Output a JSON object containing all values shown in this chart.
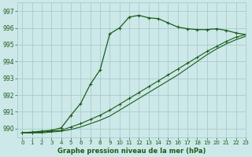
{
  "title": "Graphe pression niveau de la mer (hPa)",
  "bg_color": "#cce8e8",
  "grid_color": "#aacccc",
  "line_color": "#1a5c1a",
  "xlim": [
    -0.5,
    23
  ],
  "ylim": [
    989.5,
    997.5
  ],
  "yticks": [
    990,
    991,
    992,
    993,
    994,
    995,
    996,
    997
  ],
  "xticks": [
    0,
    1,
    2,
    3,
    4,
    5,
    6,
    7,
    8,
    9,
    10,
    11,
    12,
    13,
    14,
    15,
    16,
    17,
    18,
    19,
    20,
    21,
    22,
    23
  ],
  "series1_x": [
    0,
    1,
    2,
    3,
    4,
    5,
    6,
    7,
    8,
    9,
    10,
    11,
    12,
    13,
    14,
    15,
    16,
    17,
    18,
    19,
    20,
    21,
    22,
    23
  ],
  "series1_y": [
    989.75,
    989.8,
    989.85,
    989.9,
    990.05,
    990.8,
    991.5,
    992.65,
    993.5,
    995.65,
    996.0,
    996.65,
    996.75,
    996.6,
    996.55,
    996.3,
    996.05,
    995.95,
    995.9,
    995.9,
    995.95,
    995.85,
    995.7,
    995.6
  ],
  "series2_x": [
    0,
    1,
    2,
    3,
    4,
    5,
    6,
    7,
    8,
    9,
    10,
    11,
    12,
    13,
    14,
    15,
    16,
    17,
    18,
    19,
    20,
    21,
    22,
    23
  ],
  "series2_y": [
    989.75,
    989.75,
    989.8,
    989.85,
    989.9,
    990.1,
    990.3,
    990.55,
    990.8,
    991.1,
    991.45,
    991.8,
    992.15,
    992.5,
    992.85,
    993.2,
    993.55,
    993.9,
    994.25,
    994.6,
    994.9,
    995.2,
    995.45,
    995.6
  ],
  "series3_x": [
    0,
    1,
    2,
    3,
    4,
    5,
    6,
    7,
    8,
    9,
    10,
    11,
    12,
    13,
    14,
    15,
    16,
    17,
    18,
    19,
    20,
    21,
    22,
    23
  ],
  "series3_y": [
    989.75,
    989.75,
    989.75,
    989.8,
    989.85,
    989.95,
    990.1,
    990.3,
    990.5,
    990.75,
    991.1,
    991.45,
    991.8,
    992.15,
    992.5,
    992.85,
    993.2,
    993.6,
    994.0,
    994.4,
    994.75,
    995.05,
    995.3,
    995.5
  ]
}
